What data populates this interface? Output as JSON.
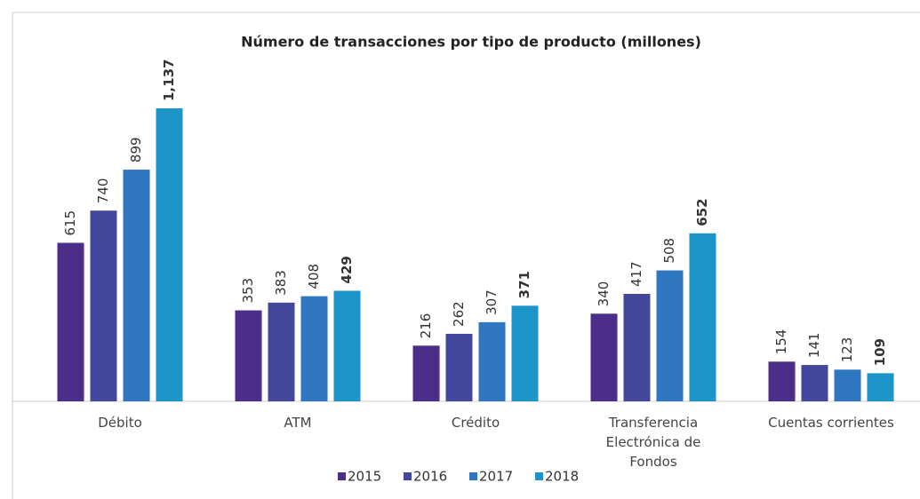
{
  "chart_data": {
    "type": "bar",
    "title": "Número de transacciones por tipo de producto (millones)",
    "categories": [
      "Débito",
      "ATM",
      "Crédito",
      "Transferencia Electrónica de Fondos",
      "Cuentas corrientes"
    ],
    "series": [
      {
        "name": "2015",
        "color": "#4b2e8a",
        "values": [
          615,
          353,
          216,
          340,
          154
        ]
      },
      {
        "name": "2016",
        "color": "#43479b",
        "values": [
          740,
          383,
          262,
          417,
          141
        ]
      },
      {
        "name": "2017",
        "color": "#2f76c0",
        "values": [
          899,
          408,
          307,
          508,
          123
        ]
      },
      {
        "name": "2018",
        "color": "#1e95c9",
        "values": [
          1137,
          429,
          371,
          652,
          109
        ],
        "value_labels": [
          "1,137",
          "429",
          "371",
          "652",
          "109"
        ]
      }
    ],
    "legend": "bottom"
  }
}
